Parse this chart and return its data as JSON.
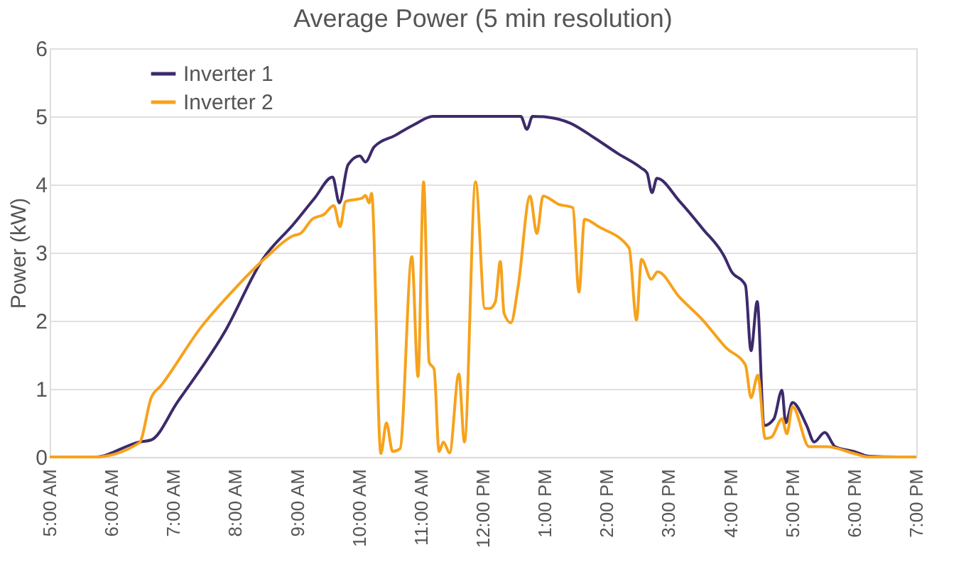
{
  "chart_data": {
    "type": "line",
    "title": "Average Power (5 min resolution)",
    "ylabel": "Power (kW)",
    "xlim": [
      5,
      19
    ],
    "xticks": [
      {
        "value": 5,
        "label": "5:00 AM"
      },
      {
        "value": 6,
        "label": "6:00 AM"
      },
      {
        "value": 7,
        "label": "7:00 AM"
      },
      {
        "value": 8,
        "label": "8:00 AM"
      },
      {
        "value": 9,
        "label": "9:00 AM"
      },
      {
        "value": 10,
        "label": "10:00 AM"
      },
      {
        "value": 11,
        "label": "11:00 AM"
      },
      {
        "value": 12,
        "label": "12:00 PM"
      },
      {
        "value": 13,
        "label": "1:00 PM"
      },
      {
        "value": 14,
        "label": "2:00 PM"
      },
      {
        "value": 15,
        "label": "3:00 PM"
      },
      {
        "value": 16,
        "label": "4:00 PM"
      },
      {
        "value": 17,
        "label": "5:00 PM"
      },
      {
        "value": 18,
        "label": "6:00 PM"
      },
      {
        "value": 19,
        "label": "7:00 PM"
      }
    ],
    "ylim": [
      0,
      6
    ],
    "yticks": [
      0,
      1,
      2,
      3,
      4,
      5,
      6
    ],
    "grid": "y",
    "legend": "top left",
    "line_style": "solid",
    "marker": "none",
    "series": [
      {
        "name": "Inverter 1",
        "color": "#3d2a6b",
        "x": [
          5.0,
          5.73,
          6.45,
          6.64,
          7.06,
          7.83,
          8.44,
          8.94,
          9.28,
          9.57,
          9.68,
          9.82,
          10.01,
          10.1,
          10.24,
          10.58,
          10.89,
          11.19,
          12.61,
          12.71,
          12.8,
          13.03,
          13.41,
          13.79,
          14.17,
          14.56,
          14.65,
          14.73,
          14.81,
          15.17,
          15.55,
          15.9,
          16.01,
          16.24,
          16.33,
          16.43,
          16.54,
          16.7,
          16.83,
          16.89,
          17.0,
          17.23,
          17.35,
          17.52,
          17.69,
          18.0,
          18.23,
          18.69,
          19.0
        ],
        "values": [
          0,
          0,
          0.22,
          0.25,
          0.8,
          1.84,
          2.9,
          3.42,
          3.8,
          4.11,
          3.73,
          4.29,
          4.42,
          4.33,
          4.55,
          4.72,
          4.88,
          5.0,
          5.0,
          4.81,
          5.0,
          4.99,
          4.9,
          4.69,
          4.46,
          4.24,
          4.17,
          3.88,
          4.09,
          3.76,
          3.35,
          2.94,
          2.73,
          2.52,
          1.56,
          2.28,
          0.46,
          0.56,
          0.98,
          0.5,
          0.8,
          0.46,
          0.22,
          0.36,
          0.15,
          0.08,
          0.01,
          0,
          0
        ]
      },
      {
        "name": "Inverter 2",
        "color": "#f7a21b",
        "x": [
          5.0,
          5.73,
          6.45,
          6.64,
          6.8,
          7.45,
          7.98,
          8.52,
          8.94,
          9.05,
          9.24,
          9.43,
          9.59,
          9.69,
          9.78,
          10.05,
          10.1,
          10.16,
          10.2,
          10.35,
          10.44,
          10.54,
          10.66,
          10.85,
          10.95,
          11.04,
          11.13,
          11.21,
          11.29,
          11.36,
          11.46,
          11.61,
          11.7,
          11.88,
          12.03,
          12.11,
          12.2,
          12.28,
          12.34,
          12.45,
          12.57,
          12.76,
          12.87,
          12.97,
          13.22,
          13.45,
          13.55,
          13.64,
          13.87,
          14.36,
          14.48,
          14.56,
          14.72,
          14.82,
          15.17,
          15.55,
          15.93,
          16.24,
          16.33,
          16.44,
          16.56,
          16.66,
          16.83,
          16.91,
          17.0,
          17.27,
          17.55,
          18.0,
          18.23,
          19.0
        ],
        "values": [
          0,
          0,
          0.21,
          0.87,
          1.05,
          1.91,
          2.46,
          2.95,
          3.25,
          3.28,
          3.49,
          3.56,
          3.69,
          3.38,
          3.75,
          3.8,
          3.84,
          3.73,
          3.87,
          0.05,
          0.5,
          0.08,
          0.12,
          2.94,
          1.18,
          4.04,
          1.39,
          1.29,
          0.08,
          0.22,
          0.06,
          1.22,
          0.22,
          4.04,
          2.18,
          2.18,
          2.28,
          2.87,
          2.11,
          1.97,
          2.52,
          3.83,
          3.28,
          3.83,
          3.71,
          3.66,
          2.42,
          3.49,
          3.38,
          3.07,
          2.01,
          2.9,
          2.61,
          2.72,
          2.35,
          2.01,
          1.6,
          1.35,
          0.87,
          1.2,
          0.27,
          0.29,
          0.56,
          0.34,
          0.74,
          0.15,
          0.15,
          0.05,
          0,
          0
        ]
      }
    ]
  }
}
